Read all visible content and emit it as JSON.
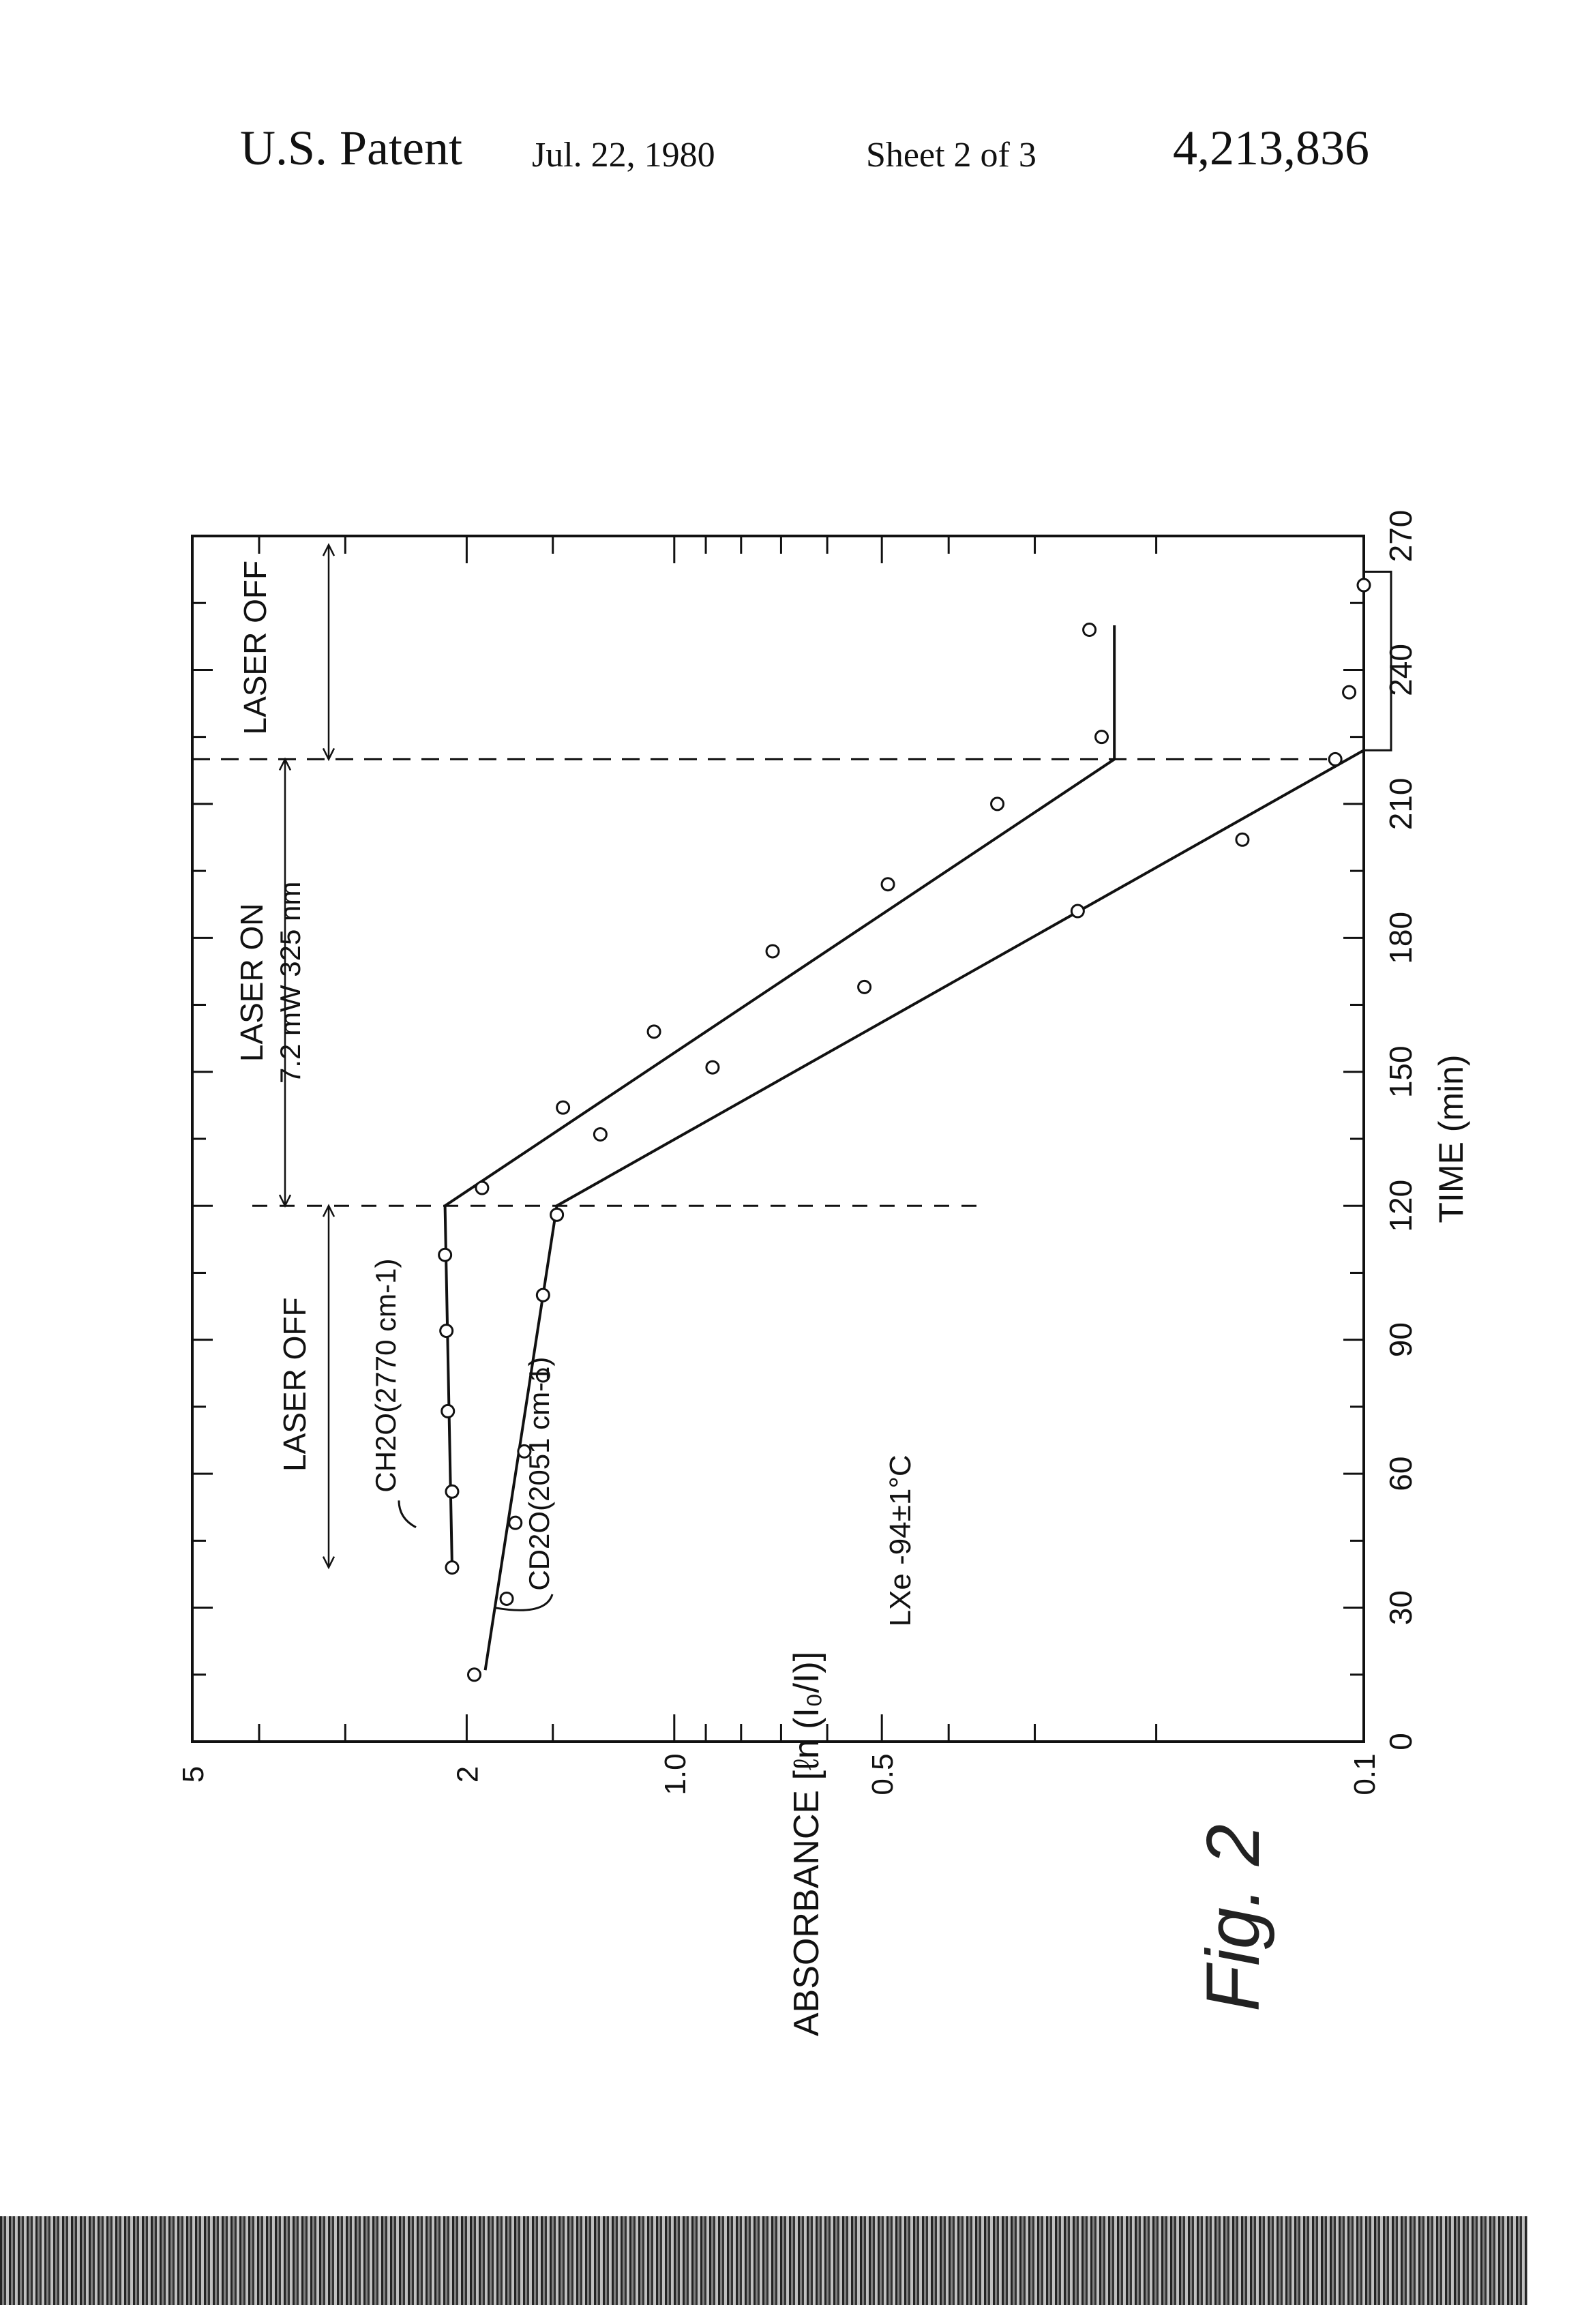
{
  "header": {
    "patent_label": "U.S. Patent",
    "date": "Jul. 22, 1980",
    "sheet": "Sheet 2 of 3",
    "patent_number": "4,213,836"
  },
  "figure_label": "Fig. 2",
  "chart_data": {
    "type": "scatter",
    "title": "",
    "xlabel": "TIME (min)",
    "ylabel": "ABSORBANCE [ℓn (I₀/I)]",
    "x_ticks": [
      "0",
      "30",
      "60",
      "90",
      "120",
      "150",
      "180",
      "210",
      "240",
      "270"
    ],
    "y_ticks": [
      "0.1",
      "0.5",
      "1.0",
      "2",
      "5"
    ],
    "xlim": [
      0,
      270
    ],
    "ylim": [
      0.1,
      5
    ],
    "y_scale": "log",
    "series": [
      {
        "name": "CH2O (2770 cm-1)",
        "x": [
          39,
          56,
          74,
          92,
          109,
          124,
          142,
          159,
          177,
          192,
          210,
          225,
          249
        ],
        "y": [
          2.1,
          2.1,
          2.13,
          2.14,
          2.15,
          1.9,
          1.45,
          1.07,
          0.72,
          0.49,
          0.34,
          0.24,
          0.25
        ],
        "fit": {
          "x": [
            39,
            120,
            220,
            250
          ],
          "y": [
            2.1,
            2.15,
            0.23,
            0.23
          ]
        }
      },
      {
        "name": "CD2O (2051 cm-1)",
        "x": [
          15,
          32,
          49,
          65,
          82,
          100,
          118,
          136,
          151,
          169,
          186,
          202,
          220,
          235,
          259
        ],
        "y": [
          1.95,
          1.75,
          1.7,
          1.65,
          1.55,
          1.55,
          1.48,
          1.28,
          0.88,
          0.53,
          0.26,
          0.15,
          0.11,
          0.105,
          0.1
        ],
        "fit": {
          "x": [
            16,
            120,
            222
          ],
          "y": [
            1.88,
            1.48,
            0.1
          ]
        }
      }
    ],
    "annotations": {
      "laser_off_left": "LASER OFF",
      "laser_on": "LASER ON",
      "laser_on_detail": "7.2 mW 325 nm",
      "laser_off_right": "LASER OFF",
      "ch2o_label": "CH2O(2770 cm-1)",
      "cd2o_label": "CD2O(2051 cm-1)",
      "condition": "LXe -94±1°C"
    },
    "grid": false,
    "legend": "none"
  }
}
